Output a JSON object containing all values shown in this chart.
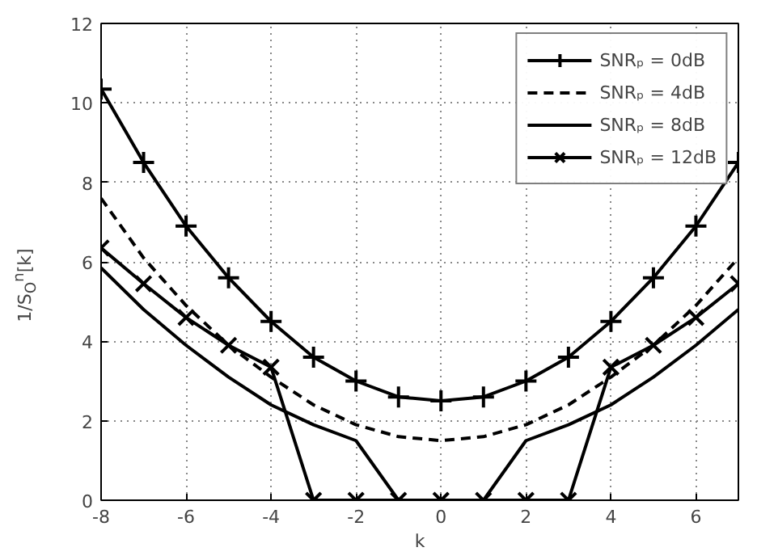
{
  "chart_data": {
    "type": "line",
    "xlabel": "k",
    "ylabel": "1/S$_{O}$$^{n}$[k]",
    "x": [
      -8,
      -7,
      -6,
      -5,
      -4,
      -3,
      -2,
      -1,
      0,
      1,
      2,
      3,
      4,
      5,
      6,
      7
    ],
    "series": [
      {
        "name": "SNRₚ = 0dB",
        "color": "#000000",
        "marker": "cross",
        "line_style": "solid",
        "values": [
          10.35,
          8.5,
          6.9,
          5.6,
          4.5,
          3.6,
          3.0,
          2.6,
          2.5,
          2.6,
          3.0,
          3.6,
          4.5,
          5.6,
          6.9,
          8.5
        ]
      },
      {
        "name": "SNRₚ = 4dB",
        "color": "#000000",
        "marker": "none",
        "line_style": "dashed",
        "values": [
          7.6,
          6.1,
          4.9,
          3.9,
          3.1,
          2.4,
          1.9,
          1.6,
          1.5,
          1.6,
          1.9,
          2.4,
          3.1,
          3.9,
          4.9,
          6.1
        ]
      },
      {
        "name": "SNRₚ = 8dB",
        "color": "#000000",
        "marker": "none",
        "line_style": "solid",
        "values": [
          5.85,
          4.8,
          3.9,
          3.1,
          2.4,
          1.9,
          1.5,
          0,
          0,
          0,
          1.5,
          1.9,
          2.4,
          3.1,
          3.9,
          4.8
        ]
      },
      {
        "name": "SNRₚ = 12dB",
        "color": "#000000",
        "marker": "x",
        "line_style": "solid",
        "values": [
          6.35,
          5.45,
          4.6,
          3.9,
          3.35,
          0,
          0,
          0,
          0,
          0,
          0,
          0,
          3.35,
          3.9,
          4.6,
          5.45
        ]
      }
    ],
    "xlim": [
      -8,
      7
    ],
    "ylim": [
      0,
      12
    ],
    "xticks": [
      -8,
      -6,
      -4,
      -2,
      0,
      2,
      4,
      6
    ],
    "yticks": [
      0,
      2,
      4,
      6,
      8,
      10,
      12
    ],
    "grid": true,
    "legend": "top right"
  }
}
